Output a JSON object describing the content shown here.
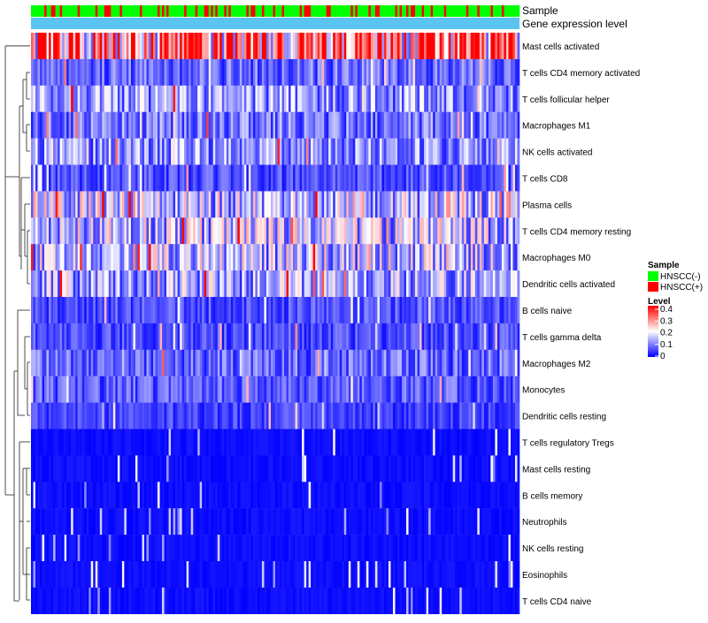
{
  "chart_data": {
    "type": "heatmap",
    "title": "",
    "annotations": [
      {
        "name": "Sample",
        "kind": "categorical"
      },
      {
        "name": "Gene expression level",
        "kind": "gradient"
      }
    ],
    "rows": [
      "Mast cells activated",
      "T cells CD4 memory activated",
      "T cells follicular helper",
      "Macrophages M1",
      "NK cells activated",
      "T cells CD8",
      "Plasma cells",
      "T cells CD4 memory resting",
      "Macrophages M0",
      "Dendritic cells activated",
      "B cells naive",
      "T cells gamma delta",
      "Macrophages M2",
      "Monocytes",
      "Dendritic cells resting",
      "T cells regulatory  Tregs",
      "Mast cells resting",
      "B cells memory",
      "Neutrophils",
      "NK cells resting",
      "Eosinophils",
      "T cells CD4 naive"
    ],
    "row_mean_levels": [
      0.33,
      0.08,
      0.12,
      0.09,
      0.11,
      0.06,
      0.16,
      0.15,
      0.15,
      0.13,
      0.06,
      0.06,
      0.08,
      0.07,
      0.05,
      0.02,
      0.01,
      0.01,
      0.01,
      0.01,
      0.005,
      0.005
    ],
    "n_columns": 220,
    "sample_groups": [
      "HNSCC(-)",
      "HNSCC(+)"
    ],
    "level_range": [
      0,
      0.4
    ],
    "legend": {
      "sample_title": "Sample",
      "level_title": "Level",
      "level_ticks": [
        "0.4",
        "0.3",
        "0.2",
        "0.1",
        "0"
      ],
      "position": "right"
    }
  },
  "colors": {
    "hnscc_neg": "#00ff00",
    "hnscc_pos": "#ff0000",
    "gene_expression_bar": "#5cc4f0",
    "low": "#0000ff",
    "mid": "#ffffff",
    "high": "#ff0000"
  }
}
